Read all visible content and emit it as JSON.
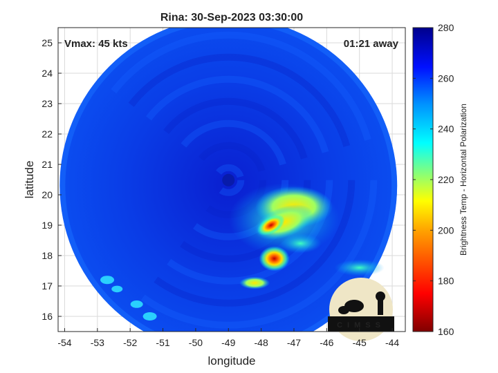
{
  "title": "Rina: 30-Sep-2023 03:30:00",
  "annotations": {
    "vmax": "Vmax: 45 kts",
    "away": "01:21 away"
  },
  "axes": {
    "xlabel": "longitude",
    "ylabel": "latitude",
    "xlim": [
      -54.2,
      -43.6
    ],
    "ylim": [
      15.5,
      25.5
    ],
    "xticks": [
      -54,
      -53,
      -52,
      -51,
      -50,
      -49,
      -48,
      -47,
      -46,
      -45,
      -44
    ],
    "yticks": [
      16,
      17,
      18,
      19,
      20,
      21,
      22,
      23,
      24,
      25
    ],
    "grid": true
  },
  "colorbar": {
    "label": "Brightness Temp - Horizontal Polarization",
    "range": [
      160,
      280
    ],
    "ticks": [
      160,
      180,
      200,
      220,
      240,
      260,
      280
    ],
    "colormap": [
      "#800000",
      "#ff0000",
      "#ff8000",
      "#ffff00",
      "#80ff80",
      "#00ffff",
      "#0080ff",
      "#0000ff",
      "#00008f"
    ]
  },
  "image": {
    "swath_center": [
      -49.0,
      20.3
    ],
    "swath_radius_deg": 5.15,
    "background_temp": 258,
    "cold_regions": [
      {
        "lon": -47.5,
        "lat": 19.3,
        "temp": 200
      },
      {
        "lon": -47.0,
        "lat": 19.7,
        "temp": 205
      },
      {
        "lon": -47.8,
        "lat": 19.0,
        "temp": 185
      },
      {
        "lon": -47.6,
        "lat": 17.9,
        "temp": 185
      },
      {
        "lon": -48.2,
        "lat": 17.1,
        "temp": 210
      },
      {
        "lon": -46.9,
        "lat": 18.4,
        "temp": 230
      }
    ]
  },
  "logo": {
    "text": "CIMSS"
  },
  "colors": {
    "frame": "#262626",
    "grid": "#d9d9d9"
  }
}
